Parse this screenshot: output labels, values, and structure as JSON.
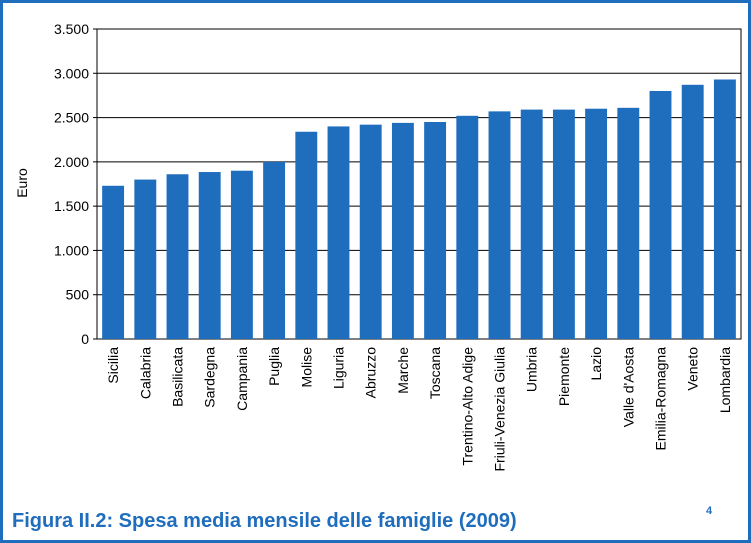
{
  "chart_data": {
    "type": "bar",
    "caption": "Figura II.2: Spesa media mensile delle famiglie (2009)",
    "footnote_marker": "4",
    "y_label": "Euro",
    "categories": [
      "Sicilia",
      "Calabria",
      "Basilicata",
      "Sardegna",
      "Campania",
      "Puglia",
      "Molise",
      "Liguria",
      "Abruzzo",
      "Marche",
      "Toscana",
      "Trentino-Alto Adige",
      "Friuli-Venezia Giulia",
      "Umbria",
      "Piemonte",
      "Lazio",
      "Valle d'Aosta",
      "Emilia-Romagna",
      "Veneto",
      "Lombardia"
    ],
    "values": [
      1730,
      1800,
      1860,
      1885,
      1900,
      2000,
      2340,
      2400,
      2420,
      2440,
      2450,
      2520,
      2570,
      2590,
      2590,
      2600,
      2610,
      2800,
      2870,
      2930
    ],
    "color": "#1f6dbd",
    "ylim": [
      0,
      3500
    ],
    "yticks": [
      0,
      500,
      {
        "value": 1000,
        "label": "1.000"
      },
      {
        "value": 1500,
        "label": "1.500"
      },
      {
        "value": 2000,
        "label": "2.000"
      },
      {
        "value": 2500,
        "label": "2.500"
      },
      {
        "value": 3000,
        "label": "3.000"
      },
      {
        "value": 3500,
        "label": "3.500"
      }
    ],
    "grid": true
  }
}
